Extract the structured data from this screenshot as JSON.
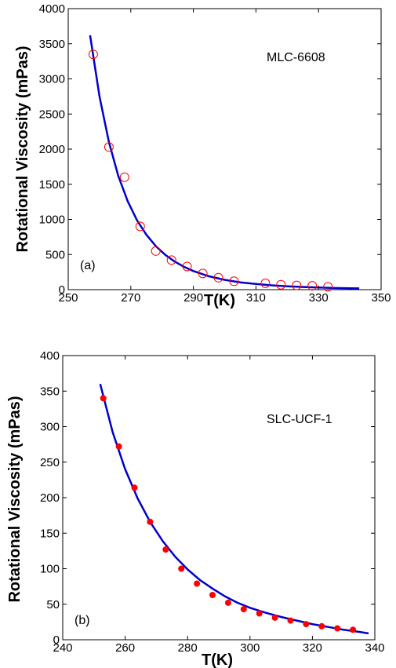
{
  "chart_data": [
    {
      "type": "scatter",
      "panel_label": "(a)",
      "material_label": "MLC-6608",
      "xlabel": "T(K)",
      "ylabel": "Rotational Viscosity (mPas)",
      "xlim": [
        250,
        350
      ],
      "ylim": [
        0,
        4000
      ],
      "xticks": [
        250,
        270,
        290,
        310,
        330,
        350
      ],
      "yticks": [
        0,
        500,
        1000,
        1500,
        2000,
        2500,
        3000,
        3500,
        4000
      ],
      "grid": false,
      "series": [
        {
          "kind": "points",
          "marker": "open-circle",
          "color": "#ff0000",
          "x": [
            258,
            263,
            268,
            273,
            278,
            283,
            288,
            293,
            298,
            303,
            313,
            318,
            323,
            328,
            333
          ],
          "y": [
            3350,
            2030,
            1600,
            900,
            550,
            420,
            330,
            230,
            170,
            120,
            90,
            70,
            60,
            55,
            40
          ]
        },
        {
          "kind": "line",
          "color": "#0000cc",
          "x": [
            257,
            260,
            263,
            266,
            269,
            272,
            275,
            278,
            281,
            284,
            287,
            290,
            295,
            300,
            305,
            310,
            315,
            320,
            325,
            330,
            335,
            340,
            343
          ],
          "y": [
            3620,
            2750,
            2100,
            1620,
            1260,
            985,
            780,
            620,
            495,
            400,
            325,
            265,
            190,
            140,
            104,
            80,
            62,
            48,
            38,
            30,
            24,
            20,
            18
          ]
        }
      ]
    },
    {
      "type": "scatter",
      "panel_label": "(b)",
      "material_label": "SLC-UCF-1",
      "xlabel": "T(K)",
      "ylabel": "Rotational Viscosity (mPas)",
      "xlim": [
        240,
        340
      ],
      "ylim": [
        0,
        400
      ],
      "xticks": [
        240,
        260,
        280,
        300,
        320,
        340
      ],
      "yticks": [
        0,
        50,
        100,
        150,
        200,
        250,
        300,
        350,
        400
      ],
      "grid": false,
      "series": [
        {
          "kind": "points",
          "marker": "filled-circle",
          "color": "#ff0000",
          "x": [
            253,
            258,
            263,
            268,
            273,
            278,
            283,
            288,
            293,
            298,
            303,
            308,
            313,
            318,
            323,
            328,
            333
          ],
          "y": [
            340,
            272,
            214,
            166,
            127,
            100,
            79,
            63,
            52,
            43,
            37,
            31,
            27,
            22,
            19,
            16,
            14
          ]
        },
        {
          "kind": "line",
          "color": "#0000cc",
          "x": [
            252,
            256,
            260,
            264,
            268,
            272,
            276,
            280,
            284,
            288,
            292,
            296,
            300,
            305,
            310,
            315,
            320,
            325,
            330,
            335,
            338
          ],
          "y": [
            360,
            292,
            240,
            199,
            166,
            139,
            117,
            99,
            84,
            72,
            61,
            52,
            45,
            38,
            32,
            27,
            22,
            18,
            14,
            11,
            9
          ]
        }
      ]
    }
  ]
}
